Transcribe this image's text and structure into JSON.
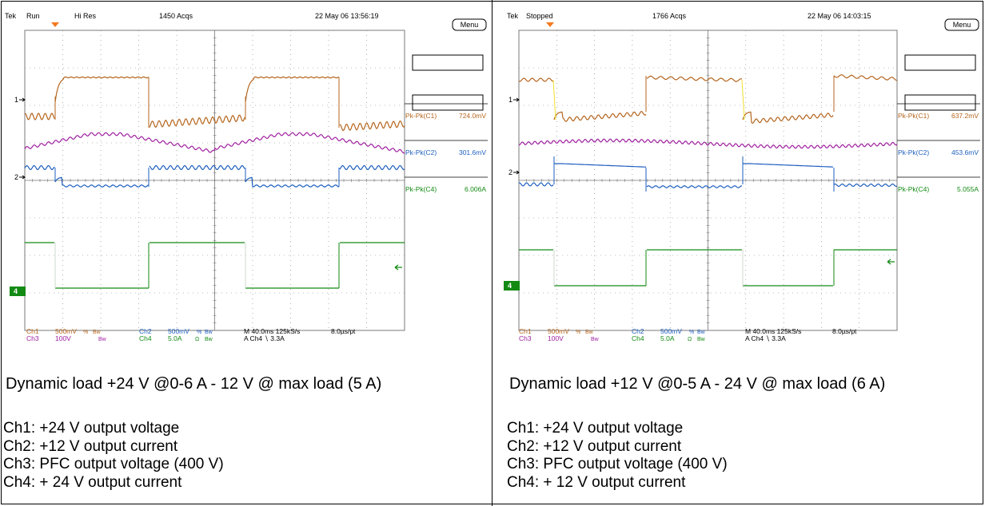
{
  "colors": {
    "ch1": "#b5651d",
    "ch2": "#1e5fbf",
    "ch3": "#a020a0",
    "ch4": "#138a13",
    "grid": "#7a7a7a",
    "trigger": "#f47a20"
  },
  "panels": [
    {
      "header": {
        "brand": "Tek",
        "state": "Run",
        "mode": "Hi Res",
        "acqs": "1450 Acqs",
        "datetime": "22 May 06 13:56:19",
        "menu": "Menu"
      },
      "measurements": [
        {
          "label": "Pk-Pk(C1)",
          "value": "724.0mV",
          "color": "#b5651d"
        },
        {
          "label": "Pk-Pk(C2)",
          "value": "301.6mV",
          "color": "#1e5fbf"
        },
        {
          "label": "Pk-Pk(C4)",
          "value": "6.006A",
          "color": "#138a13"
        }
      ],
      "markers": {
        "m1": "1",
        "m2": "2",
        "m4": "4"
      },
      "settings": {
        "ch1": "Ch1",
        "ch1v": "500mV",
        "ch3": "Ch3",
        "ch3v": "100V",
        "ch2": "Ch2",
        "ch2v": "500mV",
        "ch4": "Ch4",
        "ch4v": "5.0A",
        "bw": "Bw",
        "ohm": "Ω",
        "pct": "%",
        "timebase": "M 40.0ms 125kS/s",
        "ptrate": "8.0µs/pt",
        "trigger": "A  Ch4  ∖  3.3A"
      },
      "caption": "Dynamic load +24 V @0-6 A - 12 V @ max load (5 A)",
      "channels": [
        "Ch1: +24 V output voltage",
        "Ch2: +12 V output current",
        "Ch3: PFC output voltage (400 V)",
        "Ch4: + 24 V output current"
      ],
      "chart_data": {
        "type": "line",
        "x_unit": "ms",
        "xlim": [
          -200,
          200
        ],
        "x_div": 40,
        "series": [
          {
            "name": "Ch1",
            "scale": "500mV/div"
          },
          {
            "name": "Ch2",
            "scale": "500mV/div"
          },
          {
            "name": "Ch3",
            "scale": "100V/div"
          },
          {
            "name": "Ch4",
            "scale": "5.0A/div"
          }
        ]
      }
    },
    {
      "header": {
        "brand": "Tek",
        "state": "Stopped",
        "mode": "",
        "acqs": "1766 Acqs",
        "datetime": "22 May 06 14:03:15",
        "menu": "Menu"
      },
      "measurements": [
        {
          "label": "Pk-Pk(C1)",
          "value": "637.2mV",
          "color": "#b5651d"
        },
        {
          "label": "Pk-Pk(C2)",
          "value": "453.6mV",
          "color": "#1e5fbf"
        },
        {
          "label": "Pk-Pk(C4)",
          "value": "5.055A",
          "color": "#138a13"
        }
      ],
      "markers": {
        "m1": "1",
        "m2": "2",
        "m4": "4"
      },
      "settings": {
        "ch1": "Ch1",
        "ch1v": "500mV",
        "ch3": "Ch3",
        "ch3v": "100V",
        "ch2": "Ch2",
        "ch2v": "500mV",
        "ch4": "Ch4",
        "ch4v": "5.0A",
        "bw": "Bw",
        "ohm": "Ω",
        "pct": "%",
        "timebase": "M 40.0ms 125kS/s",
        "ptrate": "8.0µs/pt",
        "trigger": "A  Ch4  ∖  3.3A"
      },
      "caption": "Dynamic load +12 V @0-5 A - 24 V @ max load (6 A)",
      "channels": [
        "Ch1: +24 V output voltage",
        "Ch2: +12 V output current",
        "Ch3: PFC output voltage (400 V)",
        "Ch4: + 12 V output current"
      ],
      "chart_data": {
        "type": "line",
        "x_unit": "ms",
        "xlim": [
          -200,
          200
        ],
        "x_div": 40,
        "series": [
          {
            "name": "Ch1",
            "scale": "500mV/div"
          },
          {
            "name": "Ch2",
            "scale": "500mV/div"
          },
          {
            "name": "Ch3",
            "scale": "100V/div"
          },
          {
            "name": "Ch4",
            "scale": "5.0A/div"
          }
        ]
      }
    }
  ]
}
